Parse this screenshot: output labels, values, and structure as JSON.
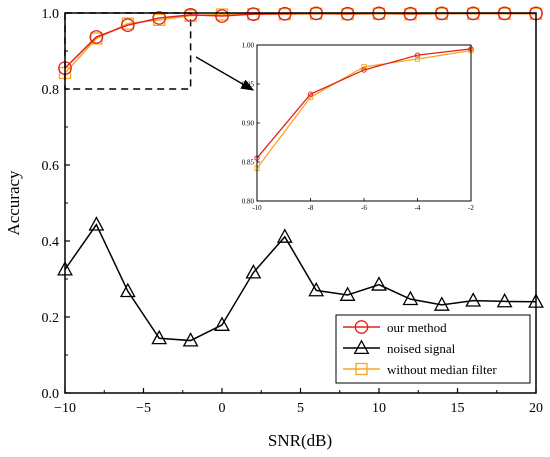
{
  "chart_data": {
    "type": "line",
    "xlabel": "SNR(dB)",
    "ylabel": "Accuracy",
    "xlim": [
      -10,
      20
    ],
    "ylim": [
      0.0,
      1.0
    ],
    "x_ticks": [
      "−10",
      "−5",
      "0",
      "5",
      "10",
      "15",
      "20"
    ],
    "y_ticks": [
      "0.0",
      "0.2",
      "0.4",
      "0.6",
      "0.8",
      "1.0"
    ],
    "legend_position": "bottom-right",
    "x": [
      -10,
      -8,
      -6,
      -4,
      -2,
      0,
      2,
      4,
      6,
      8,
      10,
      12,
      14,
      16,
      18,
      20
    ],
    "series": [
      {
        "name": "our method",
        "color": "#e0201c",
        "marker": "circle",
        "values": [
          0.855,
          0.937,
          0.968,
          0.987,
          0.995,
          0.992,
          0.997,
          0.998,
          0.999,
          0.998,
          0.999,
          0.998,
          0.999,
          0.999,
          0.999,
          0.999
        ]
      },
      {
        "name": "noised signal",
        "color": "#000000",
        "marker": "triangle",
        "values": [
          0.325,
          0.443,
          0.268,
          0.144,
          0.138,
          0.179,
          0.317,
          0.411,
          0.27,
          0.258,
          0.285,
          0.247,
          0.232,
          0.243,
          0.241,
          0.24
        ]
      },
      {
        "name": "without median filter",
        "color": "#f5a623",
        "marker": "square",
        "values": [
          0.842,
          0.933,
          0.972,
          0.982,
          0.993,
          0.996,
          0.997,
          0.997,
          0.998,
          0.997,
          0.998,
          0.997,
          0.998,
          0.998,
          0.998,
          0.998
        ]
      }
    ],
    "inset": {
      "xlim": [
        -10,
        -2
      ],
      "ylim": [
        0.8,
        1.0
      ],
      "x_ticks": [
        "-10",
        "-8",
        "-6",
        "-4",
        "-2"
      ],
      "y_ticks": [
        "0.80",
        "0.85",
        "0.90",
        "0.95",
        "1.00"
      ],
      "x": [
        -10,
        -8,
        -6,
        -4,
        -2
      ],
      "zoom_region": {
        "x": [
          -10,
          -2
        ],
        "y": [
          0.8,
          1.0
        ]
      }
    }
  }
}
